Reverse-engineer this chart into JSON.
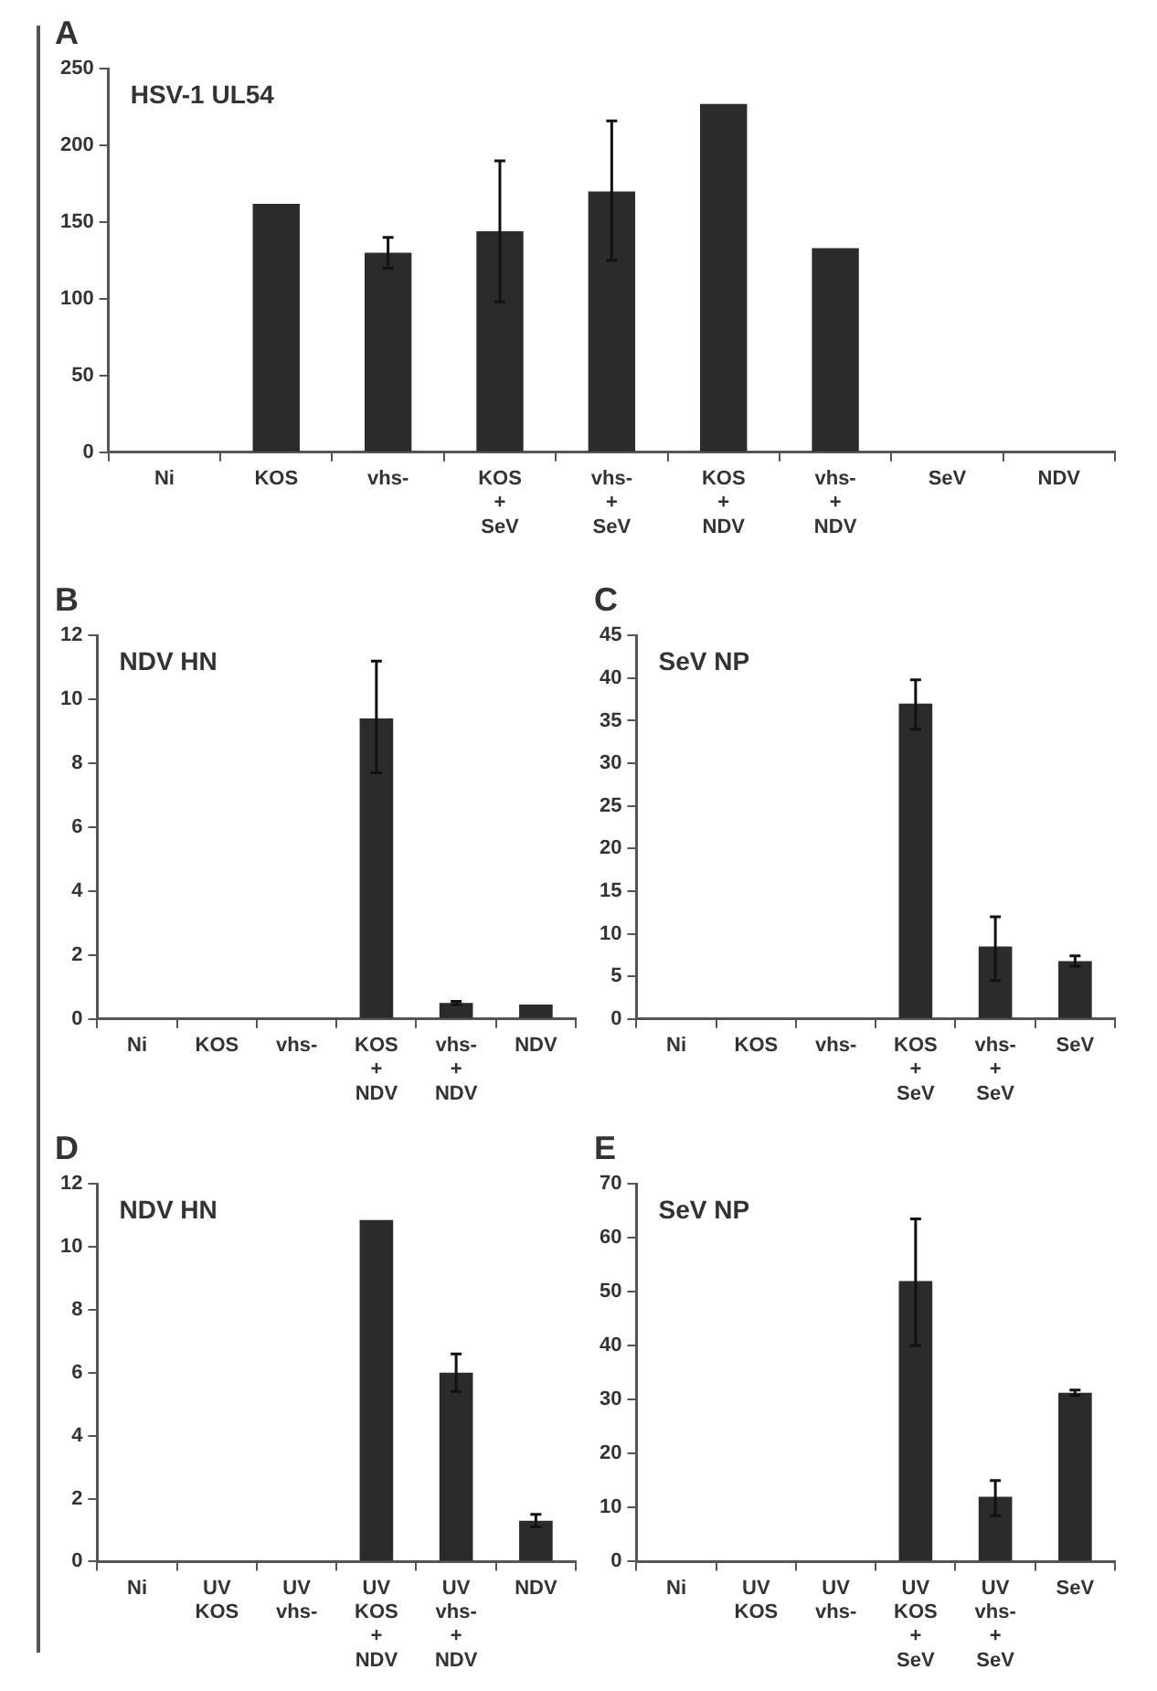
{
  "chart_data": [
    {
      "type": "bar",
      "title": "A",
      "subtitle": "HSV-1 UL54",
      "categories": [
        "Ni",
        "KOS",
        "vhs-",
        "KOS + SeV",
        "vhs- + SeV",
        "KOS + NDV",
        "vhs- + NDV",
        "SeV",
        "NDV"
      ],
      "values": [
        0,
        162,
        130,
        144,
        170,
        227,
        133,
        0,
        0
      ],
      "errors": [
        null,
        null,
        [
          120,
          140
        ],
        [
          98,
          190
        ],
        [
          125,
          216
        ],
        null,
        null,
        null,
        null
      ],
      "color": "#2b2b2b",
      "ylim": [
        0,
        250
      ],
      "yticks": [
        0,
        50,
        100,
        150,
        200,
        250
      ],
      "grid": false,
      "legend": false
    },
    {
      "type": "bar",
      "title": "B",
      "subtitle": "NDV HN",
      "categories": [
        "Ni",
        "KOS",
        "vhs-",
        "KOS + NDV",
        "vhs- + NDV",
        "NDV"
      ],
      "values": [
        0,
        0,
        0,
        9.4,
        0.5,
        0.45
      ],
      "errors": [
        null,
        null,
        null,
        [
          7.7,
          11.2
        ],
        [
          0.45,
          0.55
        ],
        null
      ],
      "color": "#2b2b2b",
      "ylim": [
        0,
        12
      ],
      "yticks": [
        0,
        2,
        4,
        6,
        8,
        10,
        12
      ],
      "grid": false,
      "legend": false
    },
    {
      "type": "bar",
      "title": "C",
      "subtitle": "SeV NP",
      "categories": [
        "Ni",
        "KOS",
        "vhs-",
        "KOS + SeV",
        "vhs- + SeV",
        "SeV"
      ],
      "values": [
        0,
        0,
        0,
        37,
        8.5,
        6.8
      ],
      "errors": [
        null,
        null,
        null,
        [
          34,
          39.8
        ],
        [
          4.5,
          12
        ],
        [
          6.2,
          7.4
        ]
      ],
      "color": "#2b2b2b",
      "ylim": [
        0,
        45
      ],
      "yticks": [
        0,
        5,
        10,
        15,
        20,
        25,
        30,
        35,
        40,
        45
      ],
      "grid": false,
      "legend": false
    },
    {
      "type": "bar",
      "title": "D",
      "subtitle": "NDV HN",
      "categories": [
        "Ni",
        "UV KOS",
        "UV vhs-",
        "UV KOS + NDV",
        "UV vhs- + NDV",
        "NDV"
      ],
      "values": [
        0,
        0,
        0,
        10.85,
        6.0,
        1.3
      ],
      "errors": [
        null,
        null,
        null,
        null,
        [
          5.4,
          6.6
        ],
        [
          1.1,
          1.5
        ]
      ],
      "color": "#2b2b2b",
      "ylim": [
        0,
        12
      ],
      "yticks": [
        0,
        2,
        4,
        6,
        8,
        10,
        12
      ],
      "grid": false,
      "legend": false
    },
    {
      "type": "bar",
      "title": "E",
      "subtitle": "SeV NP",
      "categories": [
        "Ni",
        "UV KOS",
        "UV vhs-",
        "UV KOS + SeV",
        "UV vhs- + SeV",
        "SeV"
      ],
      "values": [
        0,
        0,
        0,
        52,
        12,
        31.3
      ],
      "errors": [
        null,
        null,
        null,
        [
          40,
          63.5
        ],
        [
          8.5,
          15
        ],
        [
          30.8,
          31.8
        ]
      ],
      "color": "#2b2b2b",
      "ylim": [
        0,
        70
      ],
      "yticks": [
        0,
        10,
        20,
        30,
        40,
        50,
        60,
        70
      ],
      "grid": false,
      "legend": false
    }
  ]
}
